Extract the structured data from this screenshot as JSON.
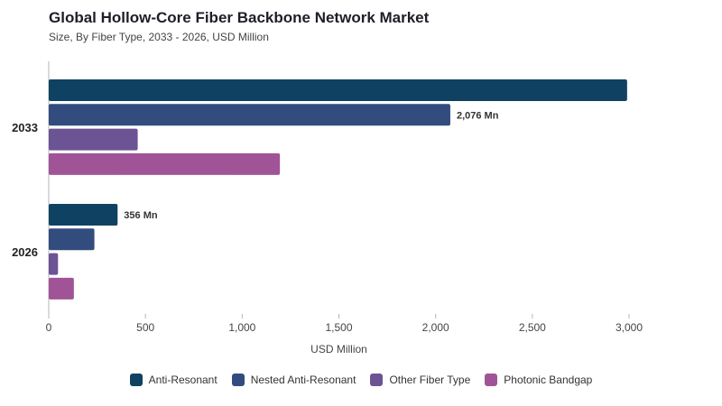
{
  "header": {
    "title": "Global Hollow-Core Fiber Backbone Network Market",
    "subtitle": "Size, By Fiber Type, 2033 - 2026, USD Million"
  },
  "chart_data": {
    "type": "bar",
    "orientation": "horizontal",
    "title": "Global Hollow-Core Fiber Backbone Network Market",
    "subtitle": "Size, By Fiber Type, 2033 - 2026, USD Million",
    "xlabel": "USD Million",
    "ylabel": "",
    "xlim": [
      0,
      3000
    ],
    "xticks": [
      "0",
      "500",
      "1,000",
      "1,500",
      "2,000",
      "2,500",
      "3,000"
    ],
    "categories": [
      "2033",
      "2026"
    ],
    "series": [
      {
        "name": "Anti-Resonant",
        "color": "#0f4262",
        "values": [
          2990,
          356
        ]
      },
      {
        "name": "Nested Anti-Resonant",
        "color": "#334c7e",
        "values": [
          2076,
          236
        ]
      },
      {
        "name": "Other Fiber Type",
        "color": "#6b5394",
        "values": [
          460,
          48
        ]
      },
      {
        "name": "Photonic Bandgap",
        "color": "#a05497",
        "values": [
          1195,
          130
        ]
      }
    ],
    "data_labels": [
      {
        "category": "2033",
        "series": "Nested Anti-Resonant",
        "text": "2,076 Mn"
      },
      {
        "category": "2026",
        "series": "Anti-Resonant",
        "text": "356 Mn"
      }
    ],
    "legend_position": "bottom",
    "grid": false
  }
}
